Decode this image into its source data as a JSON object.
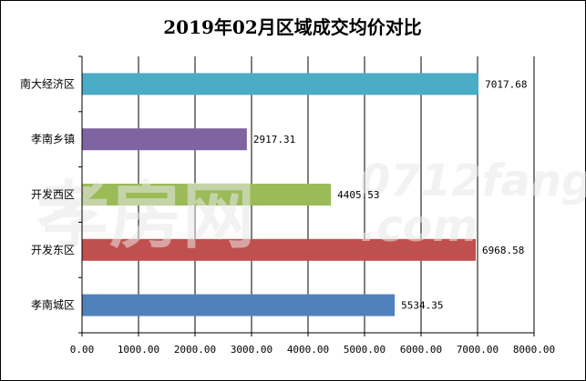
{
  "chart_data": {
    "type": "bar",
    "orientation": "horizontal",
    "title": "2019年02月区域成交均价对比",
    "categories": [
      "南大经济区",
      "孝南乡镇",
      "开发西区",
      "开发东区",
      "孝南城区"
    ],
    "values": [
      7017.68,
      2917.31,
      4405.53,
      6968.58,
      5534.35
    ],
    "value_labels": [
      "7017.68",
      "2917.31",
      "4405.53",
      "6968.58",
      "5534.35"
    ],
    "colors": [
      "#4bacc6",
      "#8064a2",
      "#9bbb59",
      "#c0504d",
      "#4f81bd"
    ],
    "xlim": [
      0,
      8000
    ],
    "x_ticks": [
      0,
      1000,
      2000,
      3000,
      4000,
      5000,
      6000,
      7000,
      8000
    ],
    "x_tick_labels": [
      "0.00",
      "1000.00",
      "2000.00",
      "3000.00",
      "4000.00",
      "5000.00",
      "6000.00",
      "7000.00",
      "8000.00"
    ],
    "grid": true,
    "legend": "none"
  },
  "watermark": {
    "text_cn": "孝房网",
    "text_en": "0712fang",
    "text_com": ".com"
  }
}
